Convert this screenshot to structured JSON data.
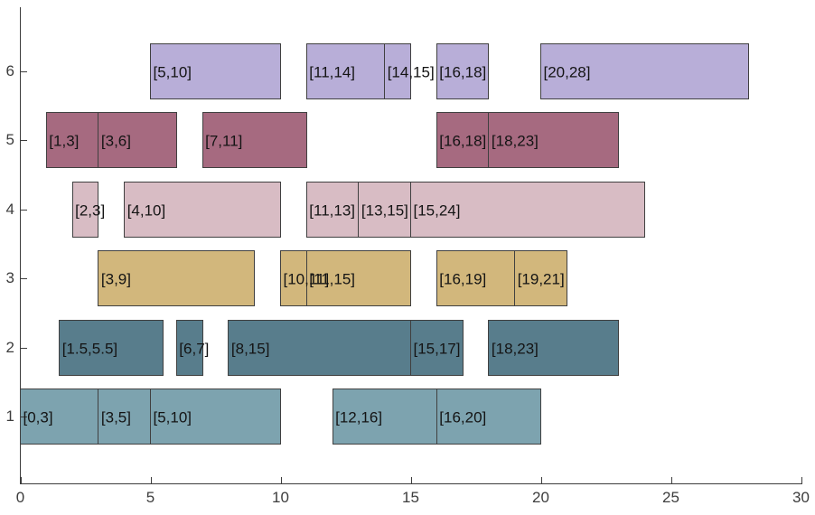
{
  "chart_data": {
    "type": "bar",
    "subtype": "horizontal-interval-gantt",
    "title": "",
    "xlabel": "",
    "ylabel": "",
    "xlim": [
      0,
      30
    ],
    "ylim": [
      0,
      7
    ],
    "grid": false,
    "legend": false,
    "background": "#ffffff",
    "edge_color": "#404040",
    "axis_color": "#3d3d3d",
    "label_text_color": "#141414",
    "x_tick_values": [
      0,
      5,
      10,
      15,
      20,
      25,
      30
    ],
    "x_tick_labels": [
      "0",
      "5",
      "10",
      "15",
      "20",
      "25",
      "30"
    ],
    "y_tick_values": [
      1,
      2,
      3,
      4,
      5,
      6
    ],
    "y_tick_labels": [
      "1",
      "2",
      "3",
      "4",
      "5",
      "6"
    ],
    "rows": [
      {
        "y": 1,
        "color": "#7da3af",
        "intervals": [
          {
            "start": 0,
            "end": 3,
            "label": "[0,3]"
          },
          {
            "start": 3,
            "end": 5,
            "label": "[3,5]"
          },
          {
            "start": 5,
            "end": 10,
            "label": "[5,10]"
          },
          {
            "start": 12,
            "end": 16,
            "label": "[12,16]"
          },
          {
            "start": 16,
            "end": 20,
            "label": "[16,20]"
          }
        ]
      },
      {
        "y": 2,
        "color": "#587d8c",
        "intervals": [
          {
            "start": 1.5,
            "end": 5.5,
            "label": "[1.5,5.5]"
          },
          {
            "start": 6,
            "end": 7,
            "label": "[6,7]"
          },
          {
            "start": 8,
            "end": 15,
            "label": "[8,15]"
          },
          {
            "start": 15,
            "end": 17,
            "label": "[15,17]"
          },
          {
            "start": 18,
            "end": 23,
            "label": "[18,23]"
          }
        ]
      },
      {
        "y": 3,
        "color": "#d2b77c",
        "intervals": [
          {
            "start": 3,
            "end": 9,
            "label": "[3,9]"
          },
          {
            "start": 10,
            "end": 11,
            "label": "[10,11]"
          },
          {
            "start": 11,
            "end": 15,
            "label": "[11,15]"
          },
          {
            "start": 16,
            "end": 19,
            "label": "[16,19]"
          },
          {
            "start": 19,
            "end": 21,
            "label": "[19,21]"
          }
        ]
      },
      {
        "y": 4,
        "color": "#d8bcc4",
        "intervals": [
          {
            "start": 2,
            "end": 3,
            "label": "[2,3]"
          },
          {
            "start": 4,
            "end": 10,
            "label": "[4,10]"
          },
          {
            "start": 11,
            "end": 13,
            "label": "[11,13]"
          },
          {
            "start": 13,
            "end": 15,
            "label": "[13,15]"
          },
          {
            "start": 15,
            "end": 24,
            "label": "[15,24]"
          }
        ]
      },
      {
        "y": 5,
        "color": "#a66a80",
        "intervals": [
          {
            "start": 1,
            "end": 3,
            "label": "[1,3]"
          },
          {
            "start": 3,
            "end": 6,
            "label": "[3,6]"
          },
          {
            "start": 7,
            "end": 11,
            "label": "[7,11]"
          },
          {
            "start": 16,
            "end": 18,
            "label": "[16,18]"
          },
          {
            "start": 18,
            "end": 23,
            "label": "[18,23]"
          }
        ]
      },
      {
        "y": 6,
        "color": "#b8aed8",
        "intervals": [
          {
            "start": 5,
            "end": 10,
            "label": "[5,10]"
          },
          {
            "start": 11,
            "end": 14,
            "label": "[11,14]"
          },
          {
            "start": 14,
            "end": 15,
            "label": "[14,15]"
          },
          {
            "start": 16,
            "end": 18,
            "label": "[16,18]"
          },
          {
            "start": 20,
            "end": 28,
            "label": "[20,28]"
          }
        ]
      }
    ]
  }
}
